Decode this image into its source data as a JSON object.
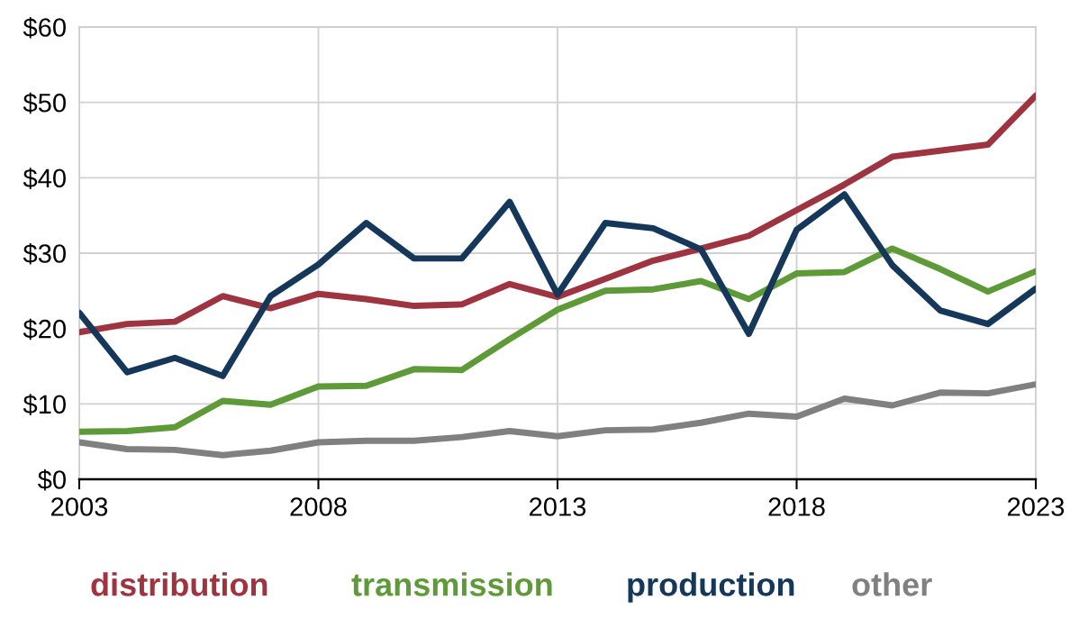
{
  "chart_data": {
    "type": "line",
    "x": [
      2003,
      2004,
      2005,
      2006,
      2007,
      2008,
      2009,
      2010,
      2011,
      2012,
      2013,
      2014,
      2015,
      2016,
      2017,
      2018,
      2019,
      2020,
      2021,
      2022,
      2023
    ],
    "series": [
      {
        "name": "distribution",
        "color": "#9e3440",
        "values": [
          19.5,
          20.6,
          20.9,
          24.3,
          22.7,
          24.6,
          23.9,
          23.0,
          23.2,
          25.9,
          24.2,
          26.6,
          29.0,
          30.6,
          32.3,
          35.7,
          39.1,
          42.8,
          43.6,
          44.4,
          50.9
        ]
      },
      {
        "name": "transmission",
        "color": "#5f9a39",
        "values": [
          6.3,
          6.4,
          6.9,
          10.4,
          9.9,
          12.3,
          12.4,
          14.6,
          14.5,
          18.6,
          22.5,
          25.0,
          25.2,
          26.3,
          23.9,
          27.3,
          27.5,
          30.6,
          27.9,
          24.9,
          27.6
        ]
      },
      {
        "name": "production",
        "color": "#15385a",
        "values": [
          22.1,
          14.2,
          16.1,
          13.7,
          24.3,
          28.5,
          34.0,
          29.3,
          29.3,
          36.8,
          24.5,
          34.0,
          33.3,
          30.5,
          19.3,
          33.1,
          37.8,
          28.4,
          22.4,
          20.6,
          25.3
        ]
      },
      {
        "name": "other",
        "color": "#808080",
        "values": [
          4.9,
          4.0,
          3.9,
          3.2,
          3.8,
          4.9,
          5.1,
          5.1,
          5.6,
          6.4,
          5.7,
          6.5,
          6.6,
          7.5,
          8.7,
          8.3,
          10.7,
          9.8,
          11.5,
          11.4,
          12.6
        ]
      }
    ],
    "xlim": [
      2003,
      2023
    ],
    "xticks": [
      2003,
      2008,
      2013,
      2018,
      2023
    ],
    "ylim": [
      0,
      60
    ],
    "yticks": [
      {
        "value": 0,
        "label": "$0"
      },
      {
        "value": 10,
        "label": "$10"
      },
      {
        "value": 20,
        "label": "$20"
      },
      {
        "value": 30,
        "label": "$30"
      },
      {
        "value": 40,
        "label": "$40"
      },
      {
        "value": 50,
        "label": "$50"
      },
      {
        "value": 60,
        "label": "$60"
      }
    ],
    "grid": true,
    "legend": "bottom",
    "marker": "none",
    "line_style": "solid"
  }
}
